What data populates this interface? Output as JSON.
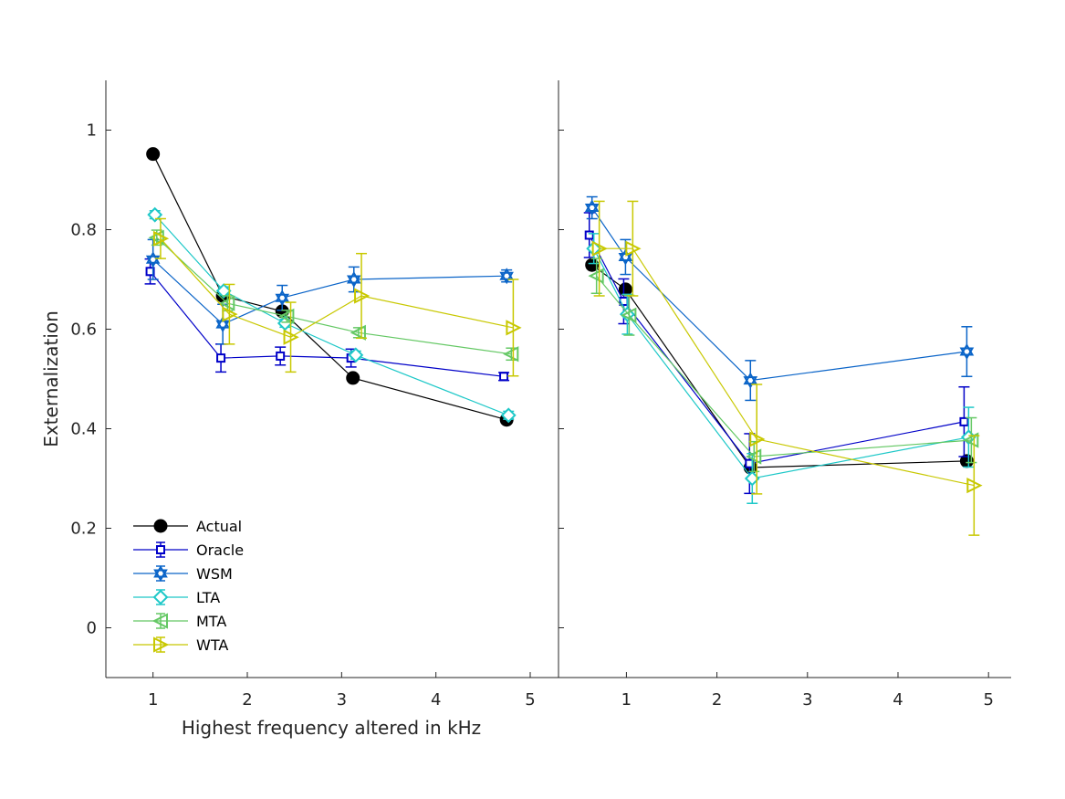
{
  "chart_data": [
    {
      "type": "line",
      "panel": "left",
      "title": "",
      "xlabel": "Highest frequency altered in kHz",
      "ylabel": "Externalization",
      "xlim": [
        0.5,
        5.3
      ],
      "ylim": [
        -0.1,
        1.1
      ],
      "xticks": [
        1,
        2,
        3,
        4,
        5
      ],
      "xtick_labels": [
        "1",
        "2",
        "3",
        "4",
        "5"
      ],
      "yticks": [
        0,
        0.2,
        0.4,
        0.6,
        0.8,
        1
      ],
      "ytick_labels": [
        "0",
        "0.2",
        "0.4",
        "0.6",
        "0.8",
        "1"
      ],
      "grid": false,
      "legend": "bottom-left",
      "series": [
        {
          "name": "Actual",
          "color": "#000000",
          "marker": "filled-circle",
          "x": [
            1.0,
            1.74,
            2.37,
            3.12,
            4.75
          ],
          "y": [
            0.952,
            0.667,
            0.636,
            0.502,
            0.418
          ],
          "err": null
        },
        {
          "name": "Oracle",
          "color": "#0000c8",
          "marker": "square",
          "x": [
            0.97,
            1.72,
            2.35,
            3.1,
            4.72
          ],
          "y": [
            0.716,
            0.542,
            0.546,
            0.542,
            0.505
          ],
          "err": [
            0.025,
            0.028,
            0.018,
            0.018,
            0.008
          ]
        },
        {
          "name": "WSM",
          "color": "#0a64c8",
          "marker": "hexagram",
          "x": [
            1.0,
            1.74,
            2.37,
            3.13,
            4.75
          ],
          "y": [
            0.74,
            0.61,
            0.663,
            0.7,
            0.707
          ],
          "err": [
            0.04,
            0.04,
            0.025,
            0.025,
            0.012
          ]
        },
        {
          "name": "LTA",
          "color": "#1ec8c8",
          "marker": "diamond",
          "x": [
            1.02,
            1.75,
            2.4,
            3.15,
            4.77
          ],
          "y": [
            0.83,
            0.677,
            0.612,
            0.548,
            0.427
          ],
          "err": [
            0.008,
            0.008,
            0.008,
            0.008,
            0.008
          ]
        },
        {
          "name": "MTA",
          "color": "#64c864",
          "marker": "triangle-left",
          "x": [
            1.04,
            1.79,
            2.42,
            3.18,
            4.8
          ],
          "y": [
            0.784,
            0.652,
            0.626,
            0.593,
            0.55
          ],
          "err": [
            0.015,
            0.015,
            0.012,
            0.01,
            0.012
          ]
        },
        {
          "name": "WTA",
          "color": "#c8c800",
          "marker": "triangle-right",
          "x": [
            1.08,
            1.81,
            2.46,
            3.21,
            4.82
          ],
          "y": [
            0.782,
            0.63,
            0.584,
            0.667,
            0.603
          ],
          "err": [
            0.04,
            0.06,
            0.07,
            0.085,
            0.097
          ]
        }
      ]
    },
    {
      "type": "line",
      "panel": "right",
      "title": "",
      "xlabel": "",
      "ylabel": "",
      "xlim": [
        0.25,
        5.25
      ],
      "ylim": [
        -0.1,
        1.1
      ],
      "xticks": [
        1,
        2,
        3,
        4,
        5
      ],
      "xtick_labels": [
        "1",
        "2",
        "3",
        "4",
        "5"
      ],
      "yticks": [
        0,
        0.2,
        0.4,
        0.6,
        0.8,
        1
      ],
      "ytick_labels": [],
      "grid": false,
      "legend": "none",
      "series": [
        {
          "name": "Actual",
          "color": "#000000",
          "marker": "filled-circle",
          "x": [
            0.62,
            0.99,
            2.37,
            4.76
          ],
          "y": [
            0.729,
            0.68,
            0.322,
            0.335
          ],
          "err": null
        },
        {
          "name": "Oracle",
          "color": "#0000c8",
          "marker": "square",
          "x": [
            0.59,
            0.97,
            2.36,
            4.73
          ],
          "y": [
            0.789,
            0.656,
            0.33,
            0.414
          ],
          "err": [
            0.045,
            0.045,
            0.06,
            0.07
          ]
        },
        {
          "name": "WSM",
          "color": "#0a64c8",
          "marker": "hexagram",
          "x": [
            0.62,
            0.99,
            2.37,
            4.76
          ],
          "y": [
            0.844,
            0.745,
            0.497,
            0.555
          ],
          "err": [
            0.022,
            0.035,
            0.04,
            0.05
          ]
        },
        {
          "name": "LTA",
          "color": "#1ec8c8",
          "marker": "diamond",
          "x": [
            0.64,
            1.01,
            2.39,
            4.78
          ],
          "y": [
            0.762,
            0.63,
            0.3,
            0.383
          ],
          "err": [
            0.03,
            0.04,
            0.05,
            0.06
          ]
        },
        {
          "name": "MTA",
          "color": "#64c864",
          "marker": "triangle-left",
          "x": [
            0.67,
            1.03,
            2.41,
            4.81
          ],
          "y": [
            0.707,
            0.628,
            0.344,
            0.377
          ],
          "err": [
            0.035,
            0.04,
            0.03,
            0.045
          ]
        },
        {
          "name": "WTA",
          "color": "#c8c800",
          "marker": "triangle-right",
          "x": [
            0.7,
            1.07,
            2.44,
            4.84
          ],
          "y": [
            0.762,
            0.762,
            0.379,
            0.286
          ],
          "err": [
            0.095,
            0.095,
            0.11,
            0.1
          ]
        }
      ]
    }
  ]
}
